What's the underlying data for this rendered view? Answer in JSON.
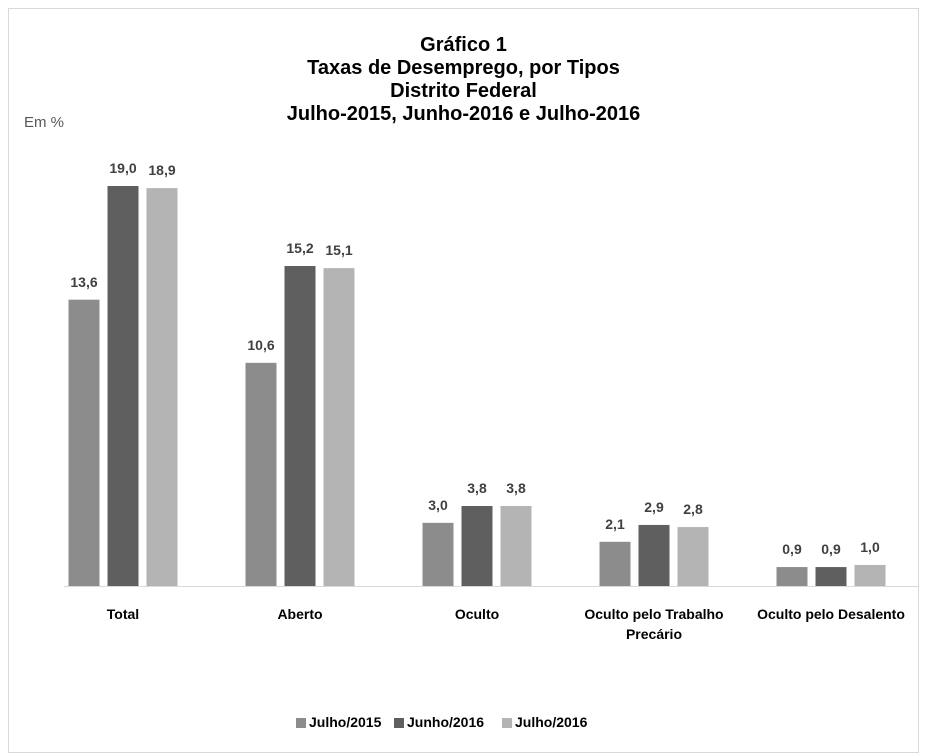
{
  "chart_data": {
    "type": "bar",
    "title": [
      "Gráfico 1",
      "Taxas de Desemprego, por Tipos",
      "Distrito Federal",
      "Julho-2015, Junho-2016 e Julho-2016"
    ],
    "unit_label": "Em %",
    "categories": [
      "Total",
      "Aberto",
      "Oculto",
      "Oculto pelo Trabalho Precário",
      "Oculto pelo Desalento"
    ],
    "series": [
      {
        "name": "Julho/2015",
        "color": "#8c8c8c",
        "values": [
          13.6,
          10.6,
          3.0,
          2.1,
          0.9
        ],
        "value_labels": [
          "13,6",
          "10,6",
          "3,0",
          "2,1",
          "0,9"
        ]
      },
      {
        "name": "Junho/2016",
        "color": "#5f5f5f",
        "values": [
          19.0,
          15.2,
          3.8,
          2.9,
          0.9
        ],
        "value_labels": [
          "19,0",
          "15,2",
          "3,8",
          "2,9",
          "0,9"
        ]
      },
      {
        "name": "Julho/2016",
        "color": "#b4b4b4",
        "values": [
          18.9,
          15.1,
          3.8,
          2.8,
          1.0
        ],
        "value_labels": [
          "18,9",
          "15,1",
          "3,8",
          "2,8",
          "1,0"
        ]
      }
    ],
    "legend": "bottom"
  }
}
